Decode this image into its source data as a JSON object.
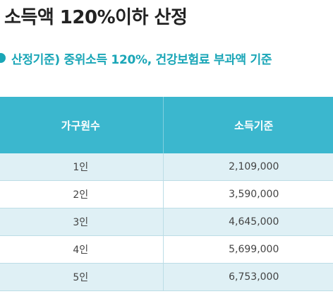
{
  "title": "소득액 120%이하 산정",
  "subtitle": "산정기준) 중위소득 120%, 건강보험료 부과액 기준",
  "table": {
    "headers": [
      "가구원수",
      "소득기준"
    ],
    "rows": [
      [
        "1인",
        "2,109,000"
      ],
      [
        "2인",
        "3,590,000"
      ],
      [
        "3인",
        "4,645,000"
      ],
      [
        "4인",
        "5,699,000"
      ],
      [
        "5인",
        "6,753,000"
      ]
    ]
  },
  "colors": {
    "accent": "#1aa6b7",
    "header_bg": "#3bb7ce",
    "row_alt_bg": "#dff0f5"
  }
}
